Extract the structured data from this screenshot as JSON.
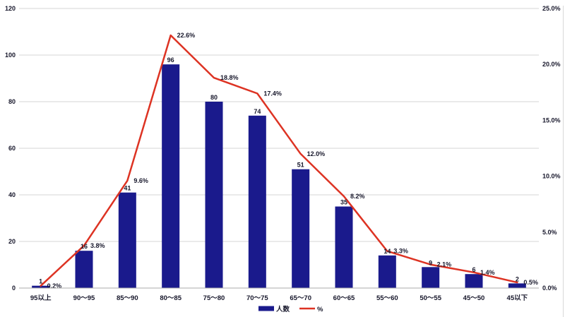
{
  "chart_data": {
    "type": "bar",
    "combo": "bar+line",
    "title": "",
    "categories": [
      "95以上",
      "90〜95",
      "85〜90",
      "80〜85",
      "75〜80",
      "70〜75",
      "65〜70",
      "60〜65",
      "55〜60",
      "50〜55",
      "45〜50",
      "45以下"
    ],
    "series": [
      {
        "name": "人数",
        "type": "bar",
        "axis": "left",
        "values": [
          1,
          16,
          41,
          96,
          80,
          74,
          51,
          35,
          14,
          9,
          6,
          2
        ],
        "labels": [
          "1",
          "16",
          "41",
          "96",
          "80",
          "74",
          "51",
          "35",
          "14",
          "9",
          "6",
          "2"
        ],
        "color": "#1A1A8C"
      },
      {
        "name": "%",
        "type": "line",
        "axis": "right",
        "values": [
          0.2,
          3.8,
          9.6,
          22.6,
          18.8,
          17.4,
          12.0,
          8.2,
          3.3,
          2.1,
          1.4,
          0.5
        ],
        "labels": [
          "0.2%",
          "3.8%",
          "9.6%",
          "22.6%",
          "18.8%",
          "17.4%",
          "12.0%",
          "8.2%",
          "3.3%",
          "2.1%",
          "1.4%",
          "0.5%"
        ],
        "color": "#DD3323"
      }
    ],
    "left_axis": {
      "min": 0,
      "max": 120,
      "tick_labels": [
        "120",
        "100",
        "80",
        "60",
        "40",
        "20",
        "0"
      ]
    },
    "right_axis": {
      "min": 0,
      "max": 25,
      "tick_labels": [
        "25.0%",
        "20.0%",
        "15.0%",
        "10.0%",
        "5.0%",
        "0.0%"
      ]
    },
    "grid": true,
    "legend_position": "bottom",
    "legend": [
      {
        "label": "人数",
        "swatch": "bar"
      },
      {
        "label": "%",
        "swatch": "line"
      }
    ]
  },
  "colors": {
    "bar": "#1A1A8C",
    "line": "#DD3323",
    "gridline": "#D6D6D6",
    "axis_line": "#ABABAB",
    "frame_line": "#D9D9D9",
    "text": "#17172B",
    "background": "#FFFFFF"
  }
}
